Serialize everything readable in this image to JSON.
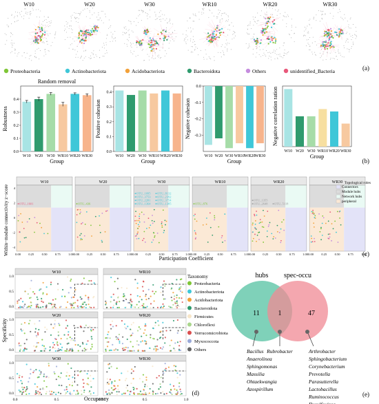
{
  "colors": {
    "Proteobacteria": "#7ec636",
    "Actinobacteriota": "#3fc7d8",
    "Acidobacteriota": "#f2a13a",
    "Bacteroidota": "#2f9b6e",
    "Others": "#c58cde",
    "unidentified_Bacteria": "#e8587a",
    "Firmicutes": "#f7e6c9",
    "Chloroflexi": "#a9d68c",
    "Verrucomicrobiota": "#d94f4f",
    "Myxococcota": "#9aa9d8",
    "OthersB": "#666666"
  },
  "panel_a": {
    "networks": [
      "W10",
      "W20",
      "W30",
      "WR10",
      "WR20",
      "WR30"
    ],
    "legend": [
      "Proteobacteria",
      "Actinobacteriota",
      "Acidobacteriota",
      "Bacteroidota",
      "Others",
      "unidentified_Bacteria"
    ],
    "letter": "(a)"
  },
  "chart_data": [
    {
      "id": "robustness",
      "type": "bar",
      "title": "Random removal",
      "categories": [
        "W10",
        "W20",
        "W30",
        "WR10",
        "WR20",
        "WR30"
      ],
      "values": [
        0.38,
        0.4,
        0.44,
        0.36,
        0.44,
        0.43
      ],
      "errors": [
        0.01,
        0.015,
        0.01,
        0.015,
        0.008,
        0.01
      ],
      "xlabel": "Group",
      "ylabel": "Robustness",
      "ylim": [
        0,
        0.5
      ],
      "yticks": [
        "0.0",
        "0.1",
        "0.2",
        "0.3",
        "0.4"
      ]
    },
    {
      "id": "positive",
      "type": "bar",
      "categories": [
        "W10",
        "W20",
        "W30",
        "WR10",
        "WR20",
        "WR30"
      ],
      "values": [
        0.41,
        0.38,
        0.41,
        0.39,
        0.41,
        0.39
      ],
      "xlabel": "Group",
      "ylabel": "Positive cohesion",
      "ylim": [
        0,
        0.44
      ],
      "yticks": [
        "0.0",
        "0.1",
        "0.2",
        "0.3",
        "0.4"
      ]
    },
    {
      "id": "negative",
      "type": "bar",
      "categories": [
        "W10",
        "W20",
        "W30",
        "WR10",
        "WR20",
        "WR30"
      ],
      "values": [
        -0.36,
        -0.32,
        -0.38,
        -0.35,
        -0.38,
        -0.35
      ],
      "xlabel": "Group",
      "ylabel": "Negative cohesion",
      "ylim": [
        -0.4,
        0
      ],
      "yticks": [
        "0.0",
        "-0.1",
        "-0.2",
        "-0.3"
      ]
    },
    {
      "id": "ratio",
      "type": "bar",
      "categories": [
        "W10",
        "W20",
        "W30",
        "WR10",
        "WR20",
        "WR30"
      ],
      "values": [
        0.95,
        0.5,
        0.5,
        0.62,
        0.58,
        0.38
      ],
      "xlabel": "Group",
      "ylabel": "Negative correlation ration",
      "ylim": [
        0,
        1.0
      ]
    },
    {
      "id": "zipi",
      "type": "scatter",
      "panels": [
        "W10",
        "W20",
        "W30",
        "WR10",
        "WR20",
        "WR30"
      ],
      "xlabel": "Participation Coefficient",
      "ylabel": "Within−module connectivity z−score",
      "xticks": [
        "0.00",
        "0.25",
        "0.50",
        "0.75",
        "1.00"
      ],
      "yticks": [
        "4",
        "2",
        "0",
        "-2",
        "-4"
      ],
      "hub_labels": {
        "W10": [
          "OTU_1601"
        ],
        "W20": [
          "OTU_436"
        ],
        "W30": [
          "OTU_1364",
          "OTU_1385",
          "OTU_2281",
          "OTU_3754",
          "OTU_3753",
          "OTU_2392",
          "OTU_1095",
          "OTU_8132"
        ],
        "WR10": [
          "OTU_876"
        ],
        "WR20": [
          "OTU_2648",
          "OTU_5118",
          "OTU_1355"
        ],
        "WR30": []
      },
      "legend_title": "Topological roles",
      "legend": [
        "Connectors",
        "Module hubs",
        "Network hubs",
        "peripheral"
      ]
    },
    {
      "id": "occupancy",
      "type": "scatter",
      "panels": [
        "W10",
        "WR10",
        "W20",
        "WR20",
        "W30",
        "WR30"
      ],
      "xlabel": "Occupancy",
      "ylabel": "Specificity",
      "xticks": [
        "0.0",
        "0.5",
        "1.0"
      ],
      "yticks": [
        "1.0",
        "0.5",
        "0.0"
      ],
      "legend_title": "Taxonomy",
      "legend": [
        "Proteobacteria",
        "Actinobacteriota",
        "Acidobacteriota",
        "Bacteroidota",
        "Firmicutes",
        "Chloroflexi",
        "Verrucomicrobiota",
        "Myxococcota",
        "Others"
      ]
    }
  ],
  "venn": {
    "left_label": "hubs",
    "right_label": "spec-occu",
    "left_only": "11",
    "overlap": "1",
    "right_only": "47",
    "left_list": [
      "Bacillus",
      "Anaerolinea",
      "Sphingomonas",
      "Massilia",
      "Ohtaekwangia",
      "Azospirillum"
    ],
    "middle_list": [
      "Rubrobacter"
    ],
    "right_list": [
      "Arthrobacter",
      "Sphingobacterium",
      "Corynebacterium",
      "Prevotella",
      "Parasutterella",
      "Lactobacillus",
      "Ruminococcus",
      "Desulfovirga"
    ]
  },
  "letters": {
    "b": "(b)",
    "c": "(c)",
    "d": "(d)",
    "e": "(e)"
  }
}
